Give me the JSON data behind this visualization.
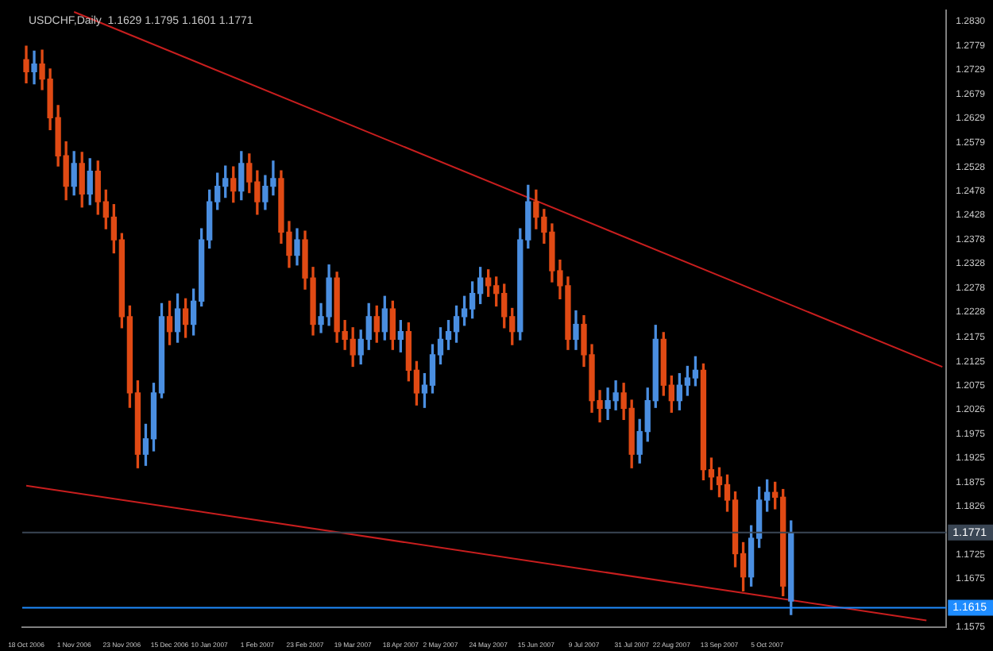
{
  "chart_data": {
    "type": "candlestick",
    "title": "USDCHF,Daily  1.1629 1.1795 1.1601 1.1771",
    "categories": [
      "18 Oct 2006",
      null,
      null,
      null,
      null,
      null,
      "1 Nov 2006",
      null,
      null,
      null,
      null,
      null,
      "23 Nov 2006",
      null,
      null,
      null,
      null,
      null,
      "15 Dec 2006",
      null,
      null,
      null,
      null,
      "10 Jan 2007",
      null,
      null,
      null,
      null,
      null,
      "1 Feb 2007",
      null,
      null,
      null,
      null,
      null,
      "23 Feb 2007",
      null,
      null,
      null,
      null,
      null,
      "19 Mar 2007",
      null,
      null,
      null,
      null,
      null,
      "18 Apr 2007",
      null,
      null,
      null,
      null,
      "2 May 2007",
      null,
      null,
      null,
      null,
      null,
      "24 May 2007",
      null,
      null,
      null,
      null,
      null,
      "15 Jun 2007",
      null,
      null,
      null,
      null,
      null,
      "9 Jul 2007",
      null,
      null,
      null,
      null,
      null,
      "31 Jul 2007",
      null,
      null,
      null,
      null,
      "22 Aug 2007",
      null,
      null,
      null,
      null,
      null,
      "13 Sep 2007",
      null,
      null,
      null,
      null,
      null,
      "5 Oct 2007",
      null,
      null,
      null,
      null,
      null,
      null,
      null,
      null,
      null,
      null,
      null,
      null,
      null,
      null,
      null,
      null,
      null,
      null,
      null,
      null,
      null,
      null
    ],
    "ohlc": [
      [
        1.275,
        1.2778,
        1.2702,
        1.2725
      ],
      [
        1.2725,
        1.2768,
        1.27,
        1.2741
      ],
      [
        1.2741,
        1.277,
        1.2688,
        1.271
      ],
      [
        1.271,
        1.2731,
        1.2605,
        1.263
      ],
      [
        1.263,
        1.2655,
        1.253,
        1.2551
      ],
      [
        1.2551,
        1.258,
        1.246,
        1.2488
      ],
      [
        1.2488,
        1.256,
        1.247,
        1.2535
      ],
      [
        1.2535,
        1.2558,
        1.2445,
        1.2472
      ],
      [
        1.2472,
        1.2545,
        1.245,
        1.2519
      ],
      [
        1.2519,
        1.254,
        1.243,
        1.2456
      ],
      [
        1.2456,
        1.248,
        1.24,
        1.2424
      ],
      [
        1.2424,
        1.245,
        1.235,
        1.2377
      ],
      [
        1.2377,
        1.239,
        1.2195,
        1.2218
      ],
      [
        1.2218,
        1.224,
        1.203,
        1.206
      ],
      [
        1.206,
        1.2085,
        1.1905,
        1.1933
      ],
      [
        1.1933,
        1.1995,
        1.191,
        1.1965
      ],
      [
        1.1965,
        1.208,
        1.194,
        1.206
      ],
      [
        1.206,
        1.2245,
        1.205,
        1.2218
      ],
      [
        1.2218,
        1.225,
        1.216,
        1.2187
      ],
      [
        1.2187,
        1.2265,
        1.2165,
        1.2234
      ],
      [
        1.2234,
        1.2255,
        1.2175,
        1.2202
      ],
      [
        1.2202,
        1.2275,
        1.218,
        1.225
      ],
      [
        1.225,
        1.24,
        1.224,
        1.2377
      ],
      [
        1.2377,
        1.248,
        1.236,
        1.2456
      ],
      [
        1.2456,
        1.2515,
        1.244,
        1.2488
      ],
      [
        1.2488,
        1.253,
        1.2465,
        1.2504
      ],
      [
        1.2504,
        1.2528,
        1.2455,
        1.2478
      ],
      [
        1.2478,
        1.256,
        1.246,
        1.2535
      ],
      [
        1.2535,
        1.2555,
        1.2475,
        1.2497
      ],
      [
        1.2497,
        1.252,
        1.243,
        1.2456
      ],
      [
        1.2456,
        1.251,
        1.244,
        1.2488
      ],
      [
        1.2488,
        1.254,
        1.247,
        1.2504
      ],
      [
        1.2504,
        1.252,
        1.237,
        1.2393
      ],
      [
        1.2393,
        1.2415,
        1.232,
        1.2345
      ],
      [
        1.2345,
        1.24,
        1.2325,
        1.2377
      ],
      [
        1.2377,
        1.2395,
        1.2275,
        1.2298
      ],
      [
        1.2298,
        1.232,
        1.218,
        1.2202
      ],
      [
        1.2202,
        1.2245,
        1.2185,
        1.2218
      ],
      [
        1.2218,
        1.2325,
        1.22,
        1.2298
      ],
      [
        1.2298,
        1.231,
        1.2165,
        1.2187
      ],
      [
        1.2187,
        1.221,
        1.215,
        1.2171
      ],
      [
        1.2171,
        1.2195,
        1.2115,
        1.2139
      ],
      [
        1.2139,
        1.219,
        1.212,
        1.2171
      ],
      [
        1.2171,
        1.2245,
        1.215,
        1.2218
      ],
      [
        1.2218,
        1.224,
        1.2165,
        1.2187
      ],
      [
        1.2187,
        1.226,
        1.217,
        1.2234
      ],
      [
        1.2234,
        1.225,
        1.215,
        1.2171
      ],
      [
        1.2171,
        1.221,
        1.2145,
        1.2187
      ],
      [
        1.2187,
        1.2205,
        1.2085,
        1.2107
      ],
      [
        1.2107,
        1.2125,
        1.2035,
        1.206
      ],
      [
        1.206,
        1.21,
        1.203,
        1.2076
      ],
      [
        1.2076,
        1.216,
        1.206,
        1.2139
      ],
      [
        1.2139,
        1.2195,
        1.212,
        1.2171
      ],
      [
        1.2171,
        1.221,
        1.215,
        1.2187
      ],
      [
        1.2187,
        1.224,
        1.2165,
        1.2218
      ],
      [
        1.2218,
        1.226,
        1.22,
        1.2234
      ],
      [
        1.2234,
        1.229,
        1.2215,
        1.2266
      ],
      [
        1.2266,
        1.232,
        1.2245,
        1.2298
      ],
      [
        1.2298,
        1.2315,
        1.226,
        1.2282
      ],
      [
        1.2282,
        1.23,
        1.224,
        1.2266
      ],
      [
        1.2266,
        1.2285,
        1.2195,
        1.2218
      ],
      [
        1.2218,
        1.2235,
        1.216,
        1.2187
      ],
      [
        1.2187,
        1.24,
        1.217,
        1.2377
      ],
      [
        1.2377,
        1.249,
        1.236,
        1.2456
      ],
      [
        1.2456,
        1.248,
        1.24,
        1.2424
      ],
      [
        1.2424,
        1.244,
        1.237,
        1.2393
      ],
      [
        1.2393,
        1.241,
        1.229,
        1.2313
      ],
      [
        1.2313,
        1.2335,
        1.2255,
        1.2282
      ],
      [
        1.2282,
        1.23,
        1.215,
        1.2171
      ],
      [
        1.2171,
        1.223,
        1.215,
        1.2202
      ],
      [
        1.2202,
        1.222,
        1.2115,
        1.2139
      ],
      [
        1.2139,
        1.216,
        1.202,
        1.2044
      ],
      [
        1.2044,
        1.2065,
        1.2,
        1.2028
      ],
      [
        1.2028,
        1.207,
        1.2005,
        1.2044
      ],
      [
        1.2044,
        1.2085,
        1.2025,
        1.206
      ],
      [
        1.206,
        1.208,
        1.2005,
        1.2028
      ],
      [
        1.2028,
        1.2045,
        1.1905,
        1.1933
      ],
      [
        1.1933,
        1.2005,
        1.1915,
        1.198
      ],
      [
        1.198,
        1.207,
        1.196,
        1.2044
      ],
      [
        1.2044,
        1.22,
        1.203,
        1.2171
      ],
      [
        1.2171,
        1.2185,
        1.2055,
        1.2076
      ],
      [
        1.2076,
        1.2095,
        1.202,
        1.2044
      ],
      [
        1.2044,
        1.21,
        1.2025,
        1.2076
      ],
      [
        1.2076,
        1.2115,
        1.2055,
        1.2091
      ],
      [
        1.2091,
        1.2135,
        1.2075,
        1.2107
      ],
      [
        1.2107,
        1.212,
        1.188,
        1.1901
      ],
      [
        1.1901,
        1.1925,
        1.186,
        1.1886
      ],
      [
        1.1886,
        1.1905,
        1.1845,
        1.187
      ],
      [
        1.187,
        1.189,
        1.1815,
        1.1838
      ],
      [
        1.1838,
        1.1855,
        1.17,
        1.1727
      ],
      [
        1.1727,
        1.175,
        1.165,
        1.1679
      ],
      [
        1.1679,
        1.1785,
        1.166,
        1.1759
      ],
      [
        1.1759,
        1.1865,
        1.174,
        1.1838
      ],
      [
        1.1838,
        1.188,
        1.1815,
        1.1854
      ],
      [
        1.1854,
        1.1875,
        1.182,
        1.1844
      ],
      [
        1.1844,
        1.186,
        1.164,
        1.166
      ],
      [
        1.1629,
        1.1795,
        1.1601,
        1.1771
      ],
      null,
      null,
      null,
      null,
      null,
      null,
      null,
      null,
      null,
      null,
      null,
      null,
      null,
      null,
      null,
      null,
      null,
      null,
      null
    ],
    "colors": [
      "#e04a14",
      "#4a8ee0",
      "#e04a14",
      "#e04a14",
      "#e04a14",
      "#e04a14",
      "#4a8ee0",
      "#e04a14",
      "#4a8ee0",
      "#e04a14",
      "#e04a14",
      "#e04a14",
      "#e04a14",
      "#e04a14",
      "#e04a14",
      "#4a8ee0",
      "#4a8ee0",
      "#4a8ee0",
      "#e04a14",
      "#4a8ee0",
      "#e04a14",
      "#4a8ee0",
      "#4a8ee0",
      "#4a8ee0",
      "#4a8ee0",
      "#4a8ee0",
      "#e04a14",
      "#4a8ee0",
      "#e04a14",
      "#e04a14",
      "#4a8ee0",
      "#4a8ee0",
      "#e04a14",
      "#e04a14",
      "#4a8ee0",
      "#e04a14",
      "#e04a14",
      "#4a8ee0",
      "#4a8ee0",
      "#e04a14",
      "#e04a14",
      "#e04a14",
      "#4a8ee0",
      "#4a8ee0",
      "#e04a14",
      "#4a8ee0",
      "#e04a14",
      "#4a8ee0",
      "#e04a14",
      "#e04a14",
      "#4a8ee0",
      "#4a8ee0",
      "#4a8ee0",
      "#4a8ee0",
      "#4a8ee0",
      "#4a8ee0",
      "#4a8ee0",
      "#4a8ee0",
      "#e04a14",
      "#e04a14",
      "#e04a14",
      "#e04a14",
      "#4a8ee0",
      "#4a8ee0",
      "#e04a14",
      "#e04a14",
      "#e04a14",
      "#e04a14",
      "#e04a14",
      "#4a8ee0",
      "#e04a14",
      "#e04a14",
      "#e04a14",
      "#4a8ee0",
      "#4a8ee0",
      "#e04a14",
      "#e04a14",
      "#4a8ee0",
      "#4a8ee0",
      "#4a8ee0",
      "#e04a14",
      "#e04a14",
      "#4a8ee0",
      "#4a8ee0",
      "#4a8ee0",
      "#e04a14",
      "#e04a14",
      "#e04a14",
      "#e04a14",
      "#e04a14",
      "#e04a14",
      "#4a8ee0",
      "#4a8ee0",
      "#4a8ee0",
      "#e04a14",
      "#e04a14",
      "#4a8ee0",
      null,
      null,
      null,
      null,
      null,
      null,
      null,
      null,
      null,
      null,
      null,
      null,
      null,
      null,
      null,
      null,
      null,
      null,
      null
    ],
    "series": [
      {
        "type": "line",
        "color": "#c81e1e",
        "values": [
          null,
          null,
          null,
          null,
          null,
          null,
          1.2849,
          null,
          null,
          null,
          null,
          null,
          null,
          null,
          null,
          null,
          null,
          null,
          null,
          null,
          null,
          null,
          null,
          null,
          null,
          null,
          null,
          null,
          null,
          null,
          null,
          null,
          null,
          null,
          null,
          null,
          null,
          null,
          null,
          null,
          null,
          null,
          null,
          null,
          null,
          null,
          null,
          null,
          null,
          null,
          null,
          null,
          null,
          null,
          null,
          null,
          null,
          null,
          null,
          null,
          null,
          null,
          null,
          null,
          null,
          null,
          null,
          null,
          null,
          null,
          null,
          null,
          null,
          null,
          null,
          null,
          null,
          null,
          null,
          null,
          null,
          null,
          null,
          null,
          null,
          null,
          null,
          null,
          null,
          null,
          null,
          null,
          null,
          null,
          null,
          null,
          null,
          null,
          null,
          null,
          null,
          null,
          null,
          null,
          null,
          null,
          null,
          null,
          null,
          null,
          null,
          null,
          null,
          null,
          null,
          1.2114
        ]
      },
      {
        "type": "line",
        "color": "#c81e1e",
        "values": [
          1.1868,
          null,
          null,
          null,
          null,
          null,
          null,
          null,
          null,
          null,
          null,
          null,
          null,
          null,
          null,
          null,
          null,
          null,
          null,
          null,
          null,
          null,
          null,
          null,
          null,
          null,
          null,
          null,
          null,
          null,
          null,
          null,
          null,
          null,
          null,
          null,
          null,
          null,
          null,
          null,
          null,
          null,
          null,
          null,
          null,
          null,
          null,
          null,
          null,
          null,
          null,
          null,
          null,
          null,
          null,
          null,
          null,
          null,
          null,
          null,
          null,
          null,
          null,
          null,
          null,
          null,
          null,
          null,
          null,
          null,
          null,
          null,
          null,
          null,
          null,
          null,
          null,
          null,
          null,
          null,
          null,
          null,
          null,
          null,
          null,
          null,
          null,
          null,
          null,
          null,
          null,
          null,
          null,
          null,
          null,
          null,
          null,
          null,
          null,
          null,
          null,
          null,
          null,
          null,
          null,
          null,
          null,
          null,
          null,
          null,
          null,
          null,
          null,
          1.1589,
          null,
          null
        ]
      }
    ],
    "ylim": [
      1.1575,
      1.2852
    ],
    "yticks": [
      {
        "value": 1.283,
        "label": "1.2830"
      },
      1.2779,
      1.2729,
      1.2679,
      1.2629,
      1.2579,
      1.2528,
      1.2478,
      1.2428,
      1.2378,
      1.2328,
      1.2278,
      1.2228,
      1.2175,
      1.2125,
      1.2075,
      1.2026,
      1.1975,
      1.1925,
      1.1875,
      1.1826,
      1.1725,
      1.1675,
      1.1575
    ],
    "ref_lines": [
      {
        "axis": "y",
        "value": 1.1771,
        "label": "1.1771",
        "color": "#3a4654"
      },
      {
        "axis": "y",
        "value": 1.1615,
        "label": "1.1615",
        "color": "#1e8cff"
      }
    ]
  }
}
